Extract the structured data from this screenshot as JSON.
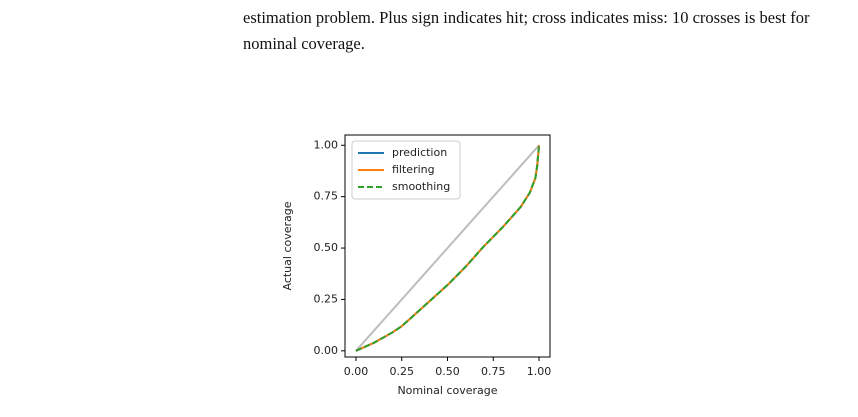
{
  "caption": [
    "estimation problem. Plus sign indicates hit; cross indicates miss: 10 crosses is best for",
    "nominal coverage."
  ],
  "chart_data": {
    "type": "line",
    "xlabel": "Nominal coverage",
    "ylabel": "Actual coverage",
    "x": [
      0,
      0.1,
      0.2,
      0.25,
      0.3,
      0.4,
      0.5,
      0.6,
      0.65,
      0.7,
      0.8,
      0.9,
      0.95,
      0.98,
      0.99,
      1
    ],
    "series": [
      {
        "name": "prediction",
        "color": "#1f77b4",
        "values": [
          0,
          0.04,
          0.09,
          0.12,
          0.16,
          0.24,
          0.32,
          0.41,
          0.46,
          0.51,
          0.6,
          0.7,
          0.77,
          0.84,
          0.9,
          1
        ]
      },
      {
        "name": "filtering",
        "color": "#ff7f0e",
        "values": [
          0,
          0.04,
          0.09,
          0.12,
          0.16,
          0.24,
          0.32,
          0.41,
          0.46,
          0.51,
          0.6,
          0.7,
          0.77,
          0.84,
          0.9,
          1
        ]
      },
      {
        "name": "smoothing",
        "color": "#2ca02c",
        "dashed": true,
        "values": [
          0,
          0.04,
          0.09,
          0.12,
          0.16,
          0.24,
          0.32,
          0.41,
          0.46,
          0.51,
          0.6,
          0.7,
          0.77,
          0.84,
          0.9,
          1
        ]
      }
    ],
    "reference_line": {
      "x": [
        0,
        1
      ],
      "values": [
        0,
        1
      ],
      "color": "#bdbdbd"
    },
    "xlim": [
      -0.06,
      1.06
    ],
    "ylim": [
      -0.03,
      1.05
    ],
    "xticks": [
      {
        "value": 0,
        "label": "0.00"
      },
      {
        "value": 0.25,
        "label": "0.25"
      },
      {
        "value": 0.5,
        "label": "0.50"
      },
      {
        "value": 0.75,
        "label": "0.75"
      },
      {
        "value": 1,
        "label": "1.00"
      }
    ],
    "yticks": [
      {
        "value": 0,
        "label": "0.00"
      },
      {
        "value": 0.25,
        "label": "0.25"
      },
      {
        "value": 0.5,
        "label": "0.50"
      },
      {
        "value": 0.75,
        "label": "0.75"
      },
      {
        "value": 1,
        "label": "1.00"
      }
    ],
    "legend": "upper left"
  }
}
